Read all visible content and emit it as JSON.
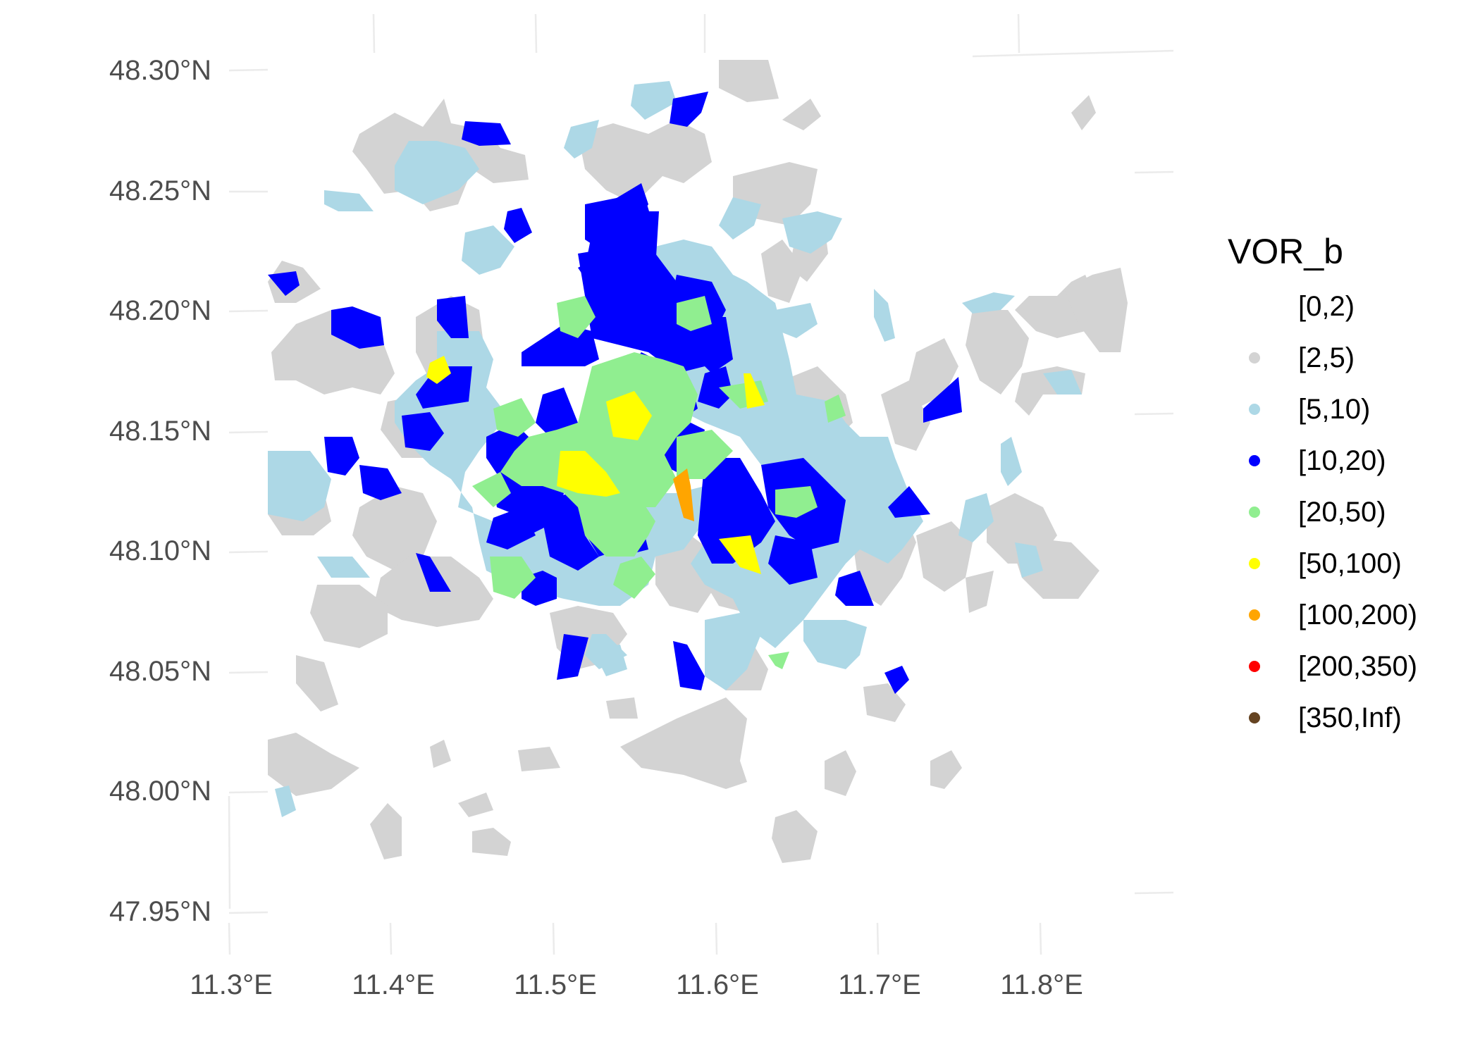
{
  "map": {
    "x_axis": {
      "ticks": [
        "11.3°E",
        "11.4°E",
        "11.5°E",
        "11.6°E",
        "11.7°E",
        "11.8°E"
      ]
    },
    "y_axis": {
      "ticks": [
        "48.30°N",
        "48.25°N",
        "48.20°N",
        "48.15°N",
        "48.10°N",
        "48.05°N",
        "48.00°N",
        "47.95°N"
      ]
    },
    "grid": true
  },
  "legend": {
    "title": "VOR_b",
    "placement": "right",
    "items": [
      {
        "label": "[0,2)",
        "color": "#ffffff"
      },
      {
        "label": "[2,5)",
        "color": "#d3d3d3"
      },
      {
        "label": "[5,10)",
        "color": "#add8e6"
      },
      {
        "label": "[10,20)",
        "color": "#0000ff"
      },
      {
        "label": "[20,50)",
        "color": "#90ee90"
      },
      {
        "label": "[50,100)",
        "color": "#ffff00"
      },
      {
        "label": "[100,200)",
        "color": "#ffa500"
      },
      {
        "label": "[200,350)",
        "color": "#ff0000"
      },
      {
        "label": "[350,Inf)",
        "color": "#654321"
      }
    ]
  }
}
